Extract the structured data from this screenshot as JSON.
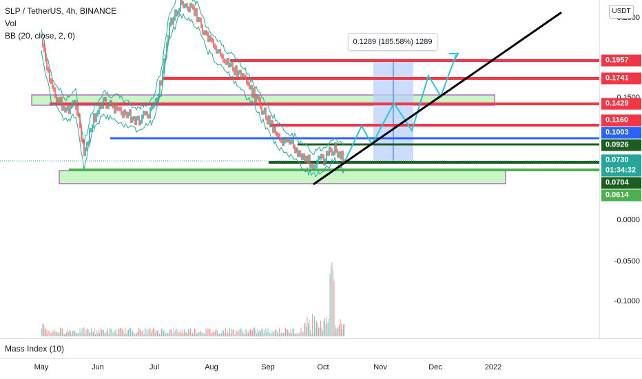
{
  "header": {
    "symbol_line": "SLP / TetherUS, 4h, BINANCE",
    "indicator_vol": "Vol",
    "indicator_bb": "BB (20, close, 2, 0)"
  },
  "currency_button": "USDT",
  "price_axis": {
    "labels": [
      "0.2500",
      "0.1500",
      "0.0000",
      "-0.0500",
      "-0.1000"
    ]
  },
  "price_tags": [
    {
      "value": "0.1957",
      "color": "#f23645"
    },
    {
      "value": "0.1741",
      "color": "#f23645"
    },
    {
      "value": "0.1429",
      "color": "#f23645"
    },
    {
      "value": "0.1160",
      "color": "#f23645"
    },
    {
      "value": "0.1003",
      "color": "#2962ff"
    },
    {
      "value": "0.0926",
      "color": "#1b5e20"
    },
    {
      "value": "0.0730",
      "color": "#26a69a"
    },
    {
      "value": "01:34:32",
      "color": "#26a69a"
    },
    {
      "value": "0.0704",
      "color": "#1b5e20"
    },
    {
      "value": "0.0614",
      "color": "#4caf50"
    }
  ],
  "measure": {
    "label": "0.1289 (185.58%) 1289"
  },
  "lower_pane": {
    "title": "Mass Index (10)"
  },
  "time_axis": {
    "labels": [
      "May",
      "Jun",
      "Jul",
      "Aug",
      "Sep",
      "Oct",
      "Nov",
      "Dec",
      "2022"
    ]
  },
  "colors": {
    "resistance": "#f23645",
    "blue_level": "#2962ff",
    "support_dark": "#1b5e20",
    "support_green": "#4caf50",
    "zone_fill": "#c8f7c5",
    "zone_border": "#9c27b0",
    "measure_fill": "#bbd0fb",
    "projection": "#26c6da",
    "trendline": "#000000",
    "candle_up": "#26a69a",
    "candle_down": "#ef5350"
  }
}
